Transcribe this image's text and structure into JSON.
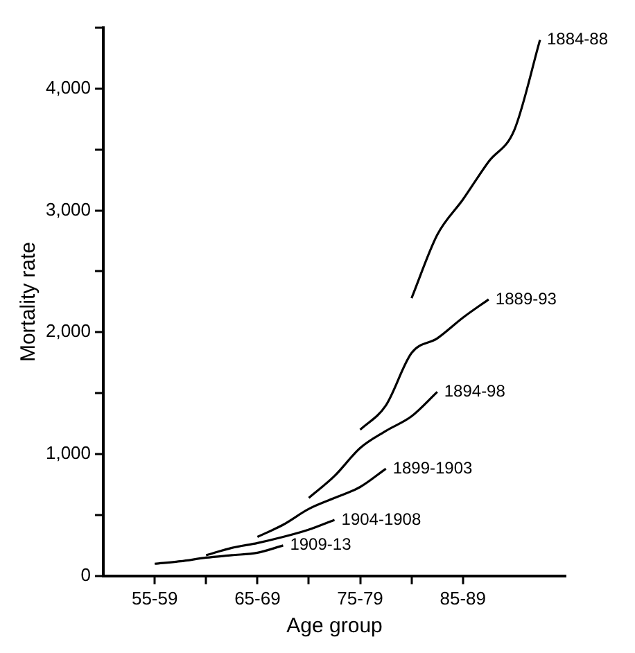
{
  "chart_data": {
    "type": "line",
    "xlabel": "Age group",
    "ylabel": "Mortality rate",
    "ylim": [
      0,
      4500
    ],
    "categories": [
      null,
      null,
      "55-59",
      null,
      null,
      null,
      "65-69",
      null,
      null,
      null,
      "75-79",
      null,
      null,
      null,
      "85-89",
      null,
      null,
      null,
      null
    ],
    "yticks": [
      0,
      {
        "value": 500,
        "label": null
      },
      {
        "value": 1000,
        "label": "1,000"
      },
      {
        "value": 1500,
        "label": null
      },
      {
        "value": 2000,
        "label": "2,000"
      },
      {
        "value": 2500,
        "label": null
      },
      {
        "value": 3000,
        "label": "3,000"
      },
      {
        "value": 3500,
        "label": null
      },
      {
        "value": 4000,
        "label": "4,000"
      },
      {
        "value": 4500,
        "label": null
      }
    ],
    "grid": false,
    "legend": false,
    "marker": "none",
    "line_style": "solid",
    "series": [
      {
        "name": "1884-88",
        "color": "#000000",
        "values": [
          null,
          null,
          null,
          null,
          null,
          null,
          null,
          null,
          null,
          null,
          null,
          null,
          2280,
          2800,
          3090,
          3400,
          3660,
          4400,
          null
        ]
      },
      {
        "name": "1889-93",
        "color": "#000000",
        "values": [
          null,
          null,
          null,
          null,
          null,
          null,
          null,
          null,
          null,
          null,
          1200,
          1400,
          1830,
          1950,
          2120,
          2270,
          null,
          null,
          null
        ]
      },
      {
        "name": "1894-98",
        "color": "#000000",
        "values": [
          null,
          null,
          null,
          null,
          null,
          null,
          null,
          null,
          640,
          820,
          1050,
          1190,
          1310,
          1510,
          null,
          null,
          null,
          null,
          null
        ]
      },
      {
        "name": "1899-1903",
        "color": "#000000",
        "values": [
          null,
          null,
          null,
          null,
          null,
          null,
          320,
          420,
          550,
          640,
          730,
          880,
          null,
          null,
          null,
          null,
          null,
          null,
          null
        ]
      },
      {
        "name": "1904-1908",
        "color": "#000000",
        "values": [
          null,
          null,
          null,
          null,
          170,
          230,
          270,
          320,
          380,
          460,
          null,
          null,
          null,
          null,
          null,
          null,
          null,
          null,
          null
        ]
      },
      {
        "name": "1909-13",
        "color": "#000000",
        "values": [
          null,
          null,
          100,
          120,
          150,
          170,
          190,
          250,
          null,
          null,
          null,
          null,
          null,
          null,
          null,
          null,
          null,
          null,
          null
        ]
      }
    ]
  }
}
